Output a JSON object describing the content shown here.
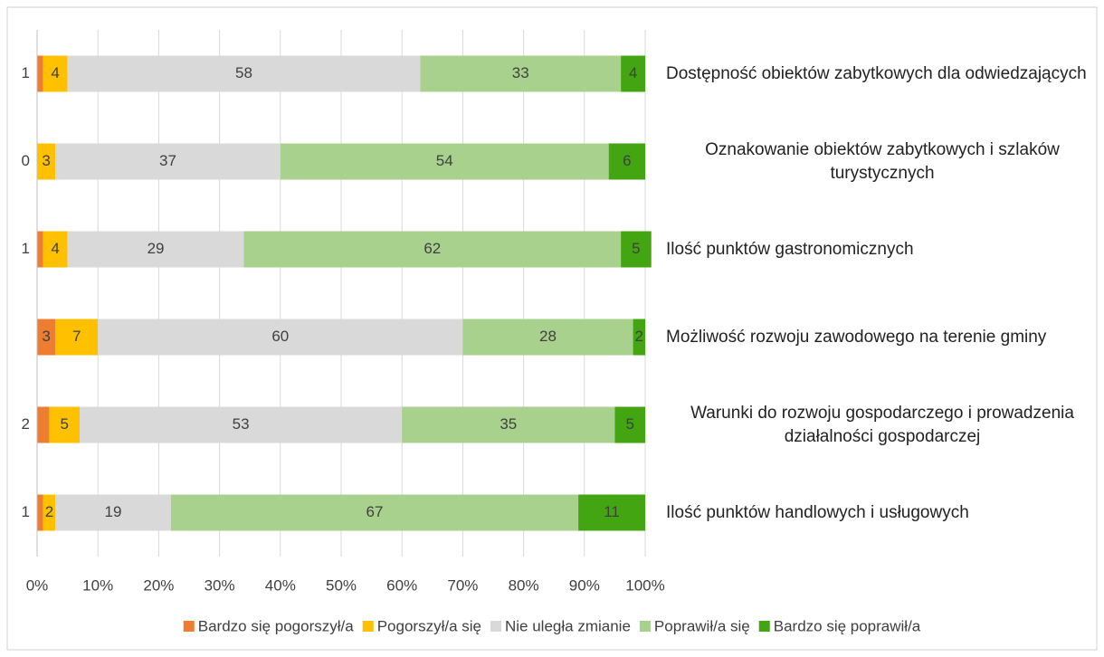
{
  "chart_data": {
    "type": "stacked_bar_horizontal",
    "categories": [
      "Dostępność obiektów zabytkowych dla odwiedzających",
      "Oznakowanie obiektów zabytkowych i szlaków turystycznych",
      "Ilość punktów gastronomicznych",
      "Możliwość rozwoju zawodowego na terenie gminy",
      "Warunki do rozwoju gospodarczego i prowadzenia działalności gospodarczej",
      "Ilość punktów handlowych i usługowych"
    ],
    "series": [
      {
        "name": "Bardzo się pogorszył/a",
        "color": "#ed7d31",
        "values": [
          1,
          0,
          1,
          3,
          2,
          1
        ]
      },
      {
        "name": "Pogorszył/a się",
        "color": "#ffc000",
        "values": [
          4,
          3,
          4,
          7,
          5,
          2
        ]
      },
      {
        "name": "Nie uległa zmianie",
        "color": "#d9d9d9",
        "values": [
          58,
          37,
          29,
          60,
          53,
          19
        ]
      },
      {
        "name": "Poprawił/a się",
        "color": "#a9d18e",
        "values": [
          33,
          54,
          62,
          28,
          35,
          67
        ]
      },
      {
        "name": "Bardzo się poprawił/a",
        "color": "#43a512",
        "values": [
          4,
          6,
          5,
          2,
          5,
          11
        ]
      }
    ],
    "xlim": [
      0,
      100
    ],
    "xticks": [
      {
        "value": 0,
        "label": "0%"
      },
      {
        "value": 10,
        "label": "10%"
      },
      {
        "value": 20,
        "label": "20%"
      },
      {
        "value": 30,
        "label": "30%"
      },
      {
        "value": 40,
        "label": "40%"
      },
      {
        "value": 50,
        "label": "50%"
      },
      {
        "value": 60,
        "label": "60%"
      },
      {
        "value": 70,
        "label": "70%"
      },
      {
        "value": 80,
        "label": "80%"
      },
      {
        "value": 90,
        "label": "90%"
      },
      {
        "value": 100,
        "label": "100%"
      }
    ],
    "grid": true,
    "legend": "bottom"
  }
}
